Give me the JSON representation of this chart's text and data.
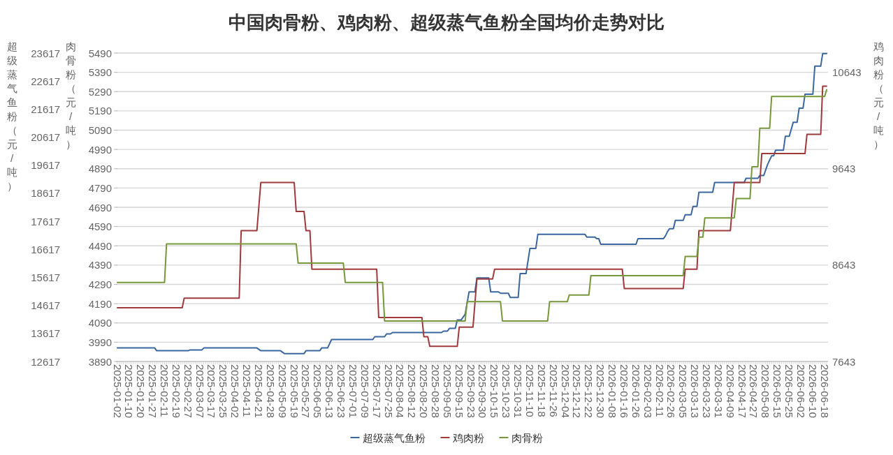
{
  "chart_data": {
    "type": "line",
    "title": "中国肉骨粉、鸡肉粉、超级蒸气鱼粉全国均价走势对比",
    "ylabel": "肉骨粉（元/吨）",
    "y2label": "鸡肉粉（元/吨）",
    "y3label": "超级蒸气鱼粉（元/吨）",
    "ylim": [
      3890,
      5490
    ],
    "yticks": [
      3890,
      3990,
      4090,
      4190,
      4290,
      4390,
      4490,
      4590,
      4690,
      4790,
      4890,
      4990,
      5090,
      5190,
      5290,
      5390,
      5490
    ],
    "y2lim": [
      7643,
      10843
    ],
    "y2ticks": [
      7643,
      8643,
      9643,
      10643
    ],
    "y3lim": [
      12617,
      23617
    ],
    "y3ticks": [
      12617,
      13617,
      14617,
      15617,
      16617,
      17617,
      18617,
      19617,
      20617,
      21617,
      22617,
      23617
    ],
    "grid": "y",
    "legend": "bottom",
    "categories": [
      "2025-01-02",
      null,
      null,
      null,
      null,
      null,
      "2025-01-10",
      null,
      null,
      null,
      null,
      null,
      "2025-01-20",
      null,
      null,
      null,
      null,
      null,
      "2025-01-27",
      null,
      null,
      null,
      null,
      null,
      "2025-02-11",
      null,
      null,
      null,
      null,
      null,
      "2025-02-19",
      null,
      null,
      null,
      null,
      null,
      "2025-02-27",
      null,
      null,
      null,
      null,
      null,
      "2025-03-07",
      null,
      null,
      null,
      null,
      null,
      "2025-03-17",
      null,
      null,
      null,
      null,
      null,
      "2025-03-25",
      null,
      null,
      null,
      null,
      null,
      "2025-04-02",
      null,
      null,
      null,
      null,
      null,
      "2025-04-11",
      null,
      null,
      null,
      null,
      null,
      "2025-04-21",
      null,
      null,
      null,
      null,
      null,
      "2025-04-28",
      null,
      null,
      null,
      null,
      null,
      "2025-05-09",
      null,
      null,
      null,
      null,
      null,
      "2025-05-19",
      null,
      null,
      null,
      null,
      null,
      "2025-05-27",
      null,
      null,
      null,
      null,
      null,
      "2025-06-05",
      null,
      null,
      null,
      null,
      null,
      "2025-06-13",
      null,
      null,
      null,
      null,
      null,
      "2025-06-23",
      null,
      null,
      null,
      null,
      null,
      "2025-07-01",
      null,
      null,
      null,
      null,
      null,
      "2025-07-09",
      null,
      null,
      null,
      null,
      null,
      "2025-07-17",
      null,
      null,
      null,
      null,
      null,
      "2025-07-25",
      null,
      null,
      null,
      null,
      null,
      "2025-08-04",
      null,
      null,
      null,
      null,
      null,
      "2025-08-12",
      null,
      null,
      null,
      null,
      null,
      "2025-08-20",
      null,
      null,
      null,
      null,
      null,
      "2025-08-28",
      null,
      null,
      null,
      null,
      null,
      "2025-09-05",
      null,
      null,
      null,
      null,
      null,
      "2025-09-15",
      null,
      null,
      null,
      null,
      null,
      "2025-09-23",
      null,
      null,
      null,
      null,
      null,
      "2025-09-30",
      null,
      null,
      null,
      null,
      null,
      "2025-10-15",
      null,
      null,
      null,
      null,
      null,
      "2025-10-23",
      null,
      null,
      null,
      null,
      null,
      "2025-10-31",
      null,
      null,
      null,
      null,
      null,
      "2025-11-10",
      null,
      null,
      null,
      null,
      null,
      "2025-11-18",
      null,
      null,
      null,
      null,
      null,
      "2025-11-26",
      null,
      null,
      null,
      null,
      null,
      "2025-12-04",
      null,
      null,
      null,
      null,
      null,
      "2025-12-12",
      null,
      null,
      null,
      null,
      null,
      "2025-12-22",
      null,
      null,
      null,
      null,
      null,
      "2025-12-30",
      null,
      null,
      null,
      null,
      null,
      "2026-01-08",
      null,
      null,
      null,
      null,
      null,
      "2026-01-16",
      null,
      null,
      null,
      null,
      null,
      "2026-01-26",
      null,
      null,
      null,
      null,
      null,
      "2026-02-03",
      null,
      null,
      null,
      null,
      null,
      "2026-02-11",
      null,
      null,
      null,
      null,
      null,
      "2026-02-26",
      null,
      null,
      null,
      null,
      null,
      "2026-03-05",
      null,
      null,
      null,
      null,
      null,
      "2026-03-13",
      null,
      null,
      null,
      null,
      null,
      "2026-03-23",
      null,
      null,
      null,
      null,
      null,
      "2026-03-31",
      null,
      null,
      null,
      null,
      null,
      "2026-04-09",
      null,
      null,
      null,
      null,
      null,
      "2026-04-17",
      null,
      null,
      null,
      null,
      null,
      "2026-04-27",
      null,
      null,
      null,
      null,
      null,
      "2026-05-08",
      null,
      null,
      null,
      null,
      null,
      "2026-05-15",
      null,
      null,
      null,
      null,
      null,
      "2026-05-25",
      null,
      null,
      null,
      null,
      null,
      "2026-06-02",
      null,
      null,
      null,
      null,
      null,
      "2026-06-10",
      null,
      null,
      null,
      null,
      null,
      "2026-06-18",
      null
    ],
    "series": [
      {
        "name": "超级蒸气鱼粉",
        "color": "#3a67a0",
        "axis": "y3",
        "values": [
          13100,
          13100,
          13100,
          13100,
          13100,
          13100,
          13100,
          13100,
          13100,
          13100,
          13100,
          13100,
          13100,
          13100,
          13100,
          13100,
          13100,
          13100,
          13100,
          13100,
          13000,
          13000,
          13000,
          13000,
          13000,
          13000,
          13000,
          13000,
          13000,
          13000,
          13000,
          13000,
          13000,
          13000,
          13000,
          13000,
          13000,
          13030,
          13030,
          13030,
          13030,
          13030,
          13030,
          13030,
          13100,
          13100,
          13100,
          13100,
          13100,
          13100,
          13100,
          13100,
          13100,
          13100,
          13100,
          13100,
          13100,
          13100,
          13100,
          13100,
          13100,
          13100,
          13100,
          13100,
          13100,
          13100,
          13100,
          13100,
          13100,
          13100,
          13100,
          13100,
          13050,
          13000,
          13000,
          13000,
          13000,
          13000,
          13000,
          13000,
          13000,
          13000,
          13000,
          13000,
          12950,
          12900,
          12900,
          12900,
          12900,
          12900,
          12900,
          12900,
          12900,
          12900,
          12900,
          12900,
          13000,
          13000,
          13000,
          13000,
          13000,
          13000,
          13000,
          13000,
          13100,
          13100,
          13100,
          13100,
          13250,
          13400,
          13400,
          13400,
          13400,
          13400,
          13400,
          13400,
          13400,
          13400,
          13400,
          13400,
          13400,
          13400,
          13400,
          13400,
          13400,
          13400,
          13400,
          13400,
          13400,
          13400,
          13400,
          13500,
          13500,
          13500,
          13500,
          13500,
          13500,
          13600,
          13600,
          13600,
          13650,
          13650,
          13650,
          13650,
          13650,
          13650,
          13650,
          13650,
          13650,
          13650,
          13650,
          13650,
          13650,
          13650,
          13650,
          13650,
          13650,
          13650,
          13650,
          13650,
          13650,
          13650,
          13650,
          13650,
          13650,
          13650,
          13700,
          13700,
          13700,
          13800,
          13800,
          13800,
          13800,
          14100,
          14100,
          14100,
          14200,
          14300,
          14700,
          15100,
          15100,
          15100,
          15100,
          15600,
          15600,
          15600,
          15600,
          15600,
          15600,
          15600,
          15100,
          15100,
          15100,
          15100,
          15100,
          15050,
          15050,
          15050,
          15050,
          15050,
          14900,
          14900,
          14900,
          14900,
          14900,
          15750,
          15750,
          15750,
          15750,
          16200,
          16650,
          16650,
          16650,
          16650,
          17150,
          17150,
          17150,
          17150,
          17150,
          17150,
          17150,
          17150,
          17150,
          17150,
          17150,
          17150,
          17150,
          17150,
          17150,
          17150,
          17150,
          17150,
          17150,
          17150,
          17150,
          17150,
          17150,
          17150,
          17150,
          17050,
          17050,
          17050,
          17050,
          17050,
          17000,
          17000,
          16800,
          16800,
          16800,
          16800,
          16800,
          16800,
          16800,
          16800,
          16800,
          16800,
          16800,
          16800,
          16800,
          16800,
          16800,
          16800,
          16800,
          16800,
          16800,
          17000,
          17000,
          17000,
          17000,
          17000,
          17000,
          17000,
          17000,
          17000,
          17000,
          17000,
          17000,
          17000,
          17000,
          17100,
          17250,
          17350,
          17350,
          17350,
          17650,
          17650,
          17650,
          17650,
          17650,
          17850,
          17850,
          17850,
          17850,
          18150,
          18150,
          18150,
          18650,
          18650,
          18650,
          18650,
          18650,
          18650,
          18650,
          18650,
          19000,
          19000,
          19000,
          19000,
          19000,
          19000,
          19000,
          19000,
          19000,
          19000,
          19000,
          19000,
          19000,
          19000,
          19000,
          19000,
          19150,
          19150,
          19150,
          19150,
          19150,
          19150,
          19150,
          19250,
          19250,
          19250,
          19450,
          19650,
          19800,
          19950,
          19950,
          20150,
          20150,
          20150,
          20150,
          20150,
          20650,
          20650,
          20650,
          20900,
          21150,
          21150,
          21150,
          21650,
          21650,
          21650,
          22150,
          22150,
          22150,
          22150,
          22150,
          23150,
          23150,
          23150,
          23150,
          23600,
          23600,
          23600
        ]
      },
      {
        "name": "鸡肉粉",
        "color": "#a0393b",
        "axis": "y2",
        "values": [
          8200,
          8200,
          8200,
          8200,
          8200,
          8200,
          8200,
          8200,
          8200,
          8200,
          8200,
          8200,
          8200,
          8200,
          8200,
          8200,
          8200,
          8200,
          8200,
          8200,
          8200,
          8200,
          8200,
          8200,
          8200,
          8200,
          8200,
          8200,
          8200,
          8200,
          8200,
          8200,
          8200,
          8200,
          8300,
          8300,
          8300,
          8300,
          8300,
          8300,
          8300,
          8300,
          8300,
          8300,
          8300,
          8300,
          8300,
          8300,
          8300,
          8300,
          8300,
          8300,
          8300,
          8300,
          8300,
          8300,
          8300,
          8300,
          8300,
          8300,
          8300,
          8300,
          8300,
          9000,
          9000,
          9000,
          9000,
          9000,
          9000,
          9000,
          9000,
          9000,
          9250,
          9500,
          9500,
          9500,
          9500,
          9500,
          9500,
          9500,
          9500,
          9500,
          9500,
          9500,
          9500,
          9500,
          9500,
          9500,
          9500,
          9500,
          9500,
          9200,
          9200,
          9200,
          9200,
          9200,
          9000,
          9000,
          9000,
          8600,
          8600,
          8600,
          8600,
          8600,
          8600,
          8600,
          8600,
          8600,
          8600,
          8600,
          8600,
          8600,
          8600,
          8600,
          8600,
          8600,
          8600,
          8600,
          8600,
          8600,
          8600,
          8600,
          8600,
          8600,
          8600,
          8600,
          8600,
          8600,
          8600,
          8600,
          8600,
          8600,
          8600,
          8100,
          8100,
          8100,
          8100,
          8100,
          8100,
          8100,
          8100,
          8100,
          8100,
          8100,
          8100,
          8100,
          8100,
          8100,
          8100,
          8100,
          8100,
          8100,
          8100,
          8100,
          8100,
          8100,
          7900,
          7900,
          7900,
          7800,
          7800,
          7800,
          7800,
          7800,
          7800,
          7800,
          7800,
          7800,
          7800,
          7800,
          7800,
          7800,
          7800,
          7800,
          8000,
          8000,
          8000,
          8000,
          8000,
          8000,
          8000,
          8000,
          8250,
          8500,
          8500,
          8500,
          8500,
          8500,
          8500,
          8500,
          8500,
          8500,
          8600,
          8600,
          8600,
          8600,
          8600,
          8600,
          8600,
          8600,
          8600,
          8600,
          8600,
          8600,
          8600,
          8600,
          8600,
          8600,
          8600,
          8600,
          8600,
          8600,
          8600,
          8600,
          8600,
          8600,
          8600,
          8600,
          8600,
          8600,
          8600,
          8600,
          8600,
          8600,
          8600,
          8600,
          8600,
          8600,
          8600,
          8600,
          8600,
          8600,
          8600,
          8600,
          8600,
          8600,
          8600,
          8600,
          8600,
          8600,
          8600,
          8600,
          8600,
          8600,
          8600,
          8600,
          8600,
          8600,
          8600,
          8600,
          8600,
          8600,
          8600,
          8600,
          8600,
          8600,
          8600,
          8600,
          8400,
          8400,
          8400,
          8400,
          8400,
          8400,
          8400,
          8400,
          8400,
          8400,
          8400,
          8400,
          8400,
          8400,
          8400,
          8400,
          8400,
          8400,
          8400,
          8400,
          8400,
          8400,
          8400,
          8400,
          8400,
          8400,
          8400,
          8400,
          8400,
          8400,
          8400,
          8600,
          8600,
          8600,
          8600,
          8600,
          8600,
          8600,
          9000,
          9000,
          9000,
          9000,
          9000,
          9000,
          9000,
          9000,
          9000,
          9000,
          9000,
          9000,
          9000,
          9000,
          9000,
          9000,
          9000,
          9250,
          9500,
          9500,
          9500,
          9500,
          9500,
          9500,
          9500,
          9500,
          9500,
          9500,
          9500,
          9500,
          9500,
          9500,
          9800,
          9800,
          9800,
          9800,
          9800,
          9800,
          9800,
          9800,
          9800,
          9800,
          9800,
          9800,
          9800,
          9800,
          9800,
          9800,
          9800,
          9800,
          9800,
          9800,
          9800,
          9800,
          9800,
          10000,
          10000,
          10000,
          10000,
          10000,
          10000,
          10000,
          10000,
          10500,
          10500,
          10500
        ]
      },
      {
        "name": "肉骨粉",
        "color": "#76983a",
        "values": [
          4300,
          4300,
          4300,
          4300,
          4300,
          4300,
          4300,
          4300,
          4300,
          4300,
          4300,
          4300,
          4300,
          4300,
          4300,
          4300,
          4300,
          4300,
          4300,
          4300,
          4300,
          4300,
          4300,
          4300,
          4300,
          4500,
          4500,
          4500,
          4500,
          4500,
          4500,
          4500,
          4500,
          4500,
          4500,
          4500,
          4500,
          4500,
          4500,
          4500,
          4500,
          4500,
          4500,
          4500,
          4500,
          4500,
          4500,
          4500,
          4500,
          4500,
          4500,
          4500,
          4500,
          4500,
          4500,
          4500,
          4500,
          4500,
          4500,
          4500,
          4500,
          4500,
          4500,
          4500,
          4500,
          4500,
          4500,
          4500,
          4500,
          4500,
          4500,
          4500,
          4500,
          4500,
          4500,
          4500,
          4500,
          4500,
          4500,
          4500,
          4500,
          4500,
          4500,
          4500,
          4500,
          4500,
          4500,
          4500,
          4500,
          4500,
          4500,
          4500,
          4400,
          4400,
          4400,
          4400,
          4400,
          4400,
          4400,
          4400,
          4400,
          4400,
          4400,
          4400,
          4400,
          4400,
          4400,
          4400,
          4400,
          4400,
          4400,
          4400,
          4400,
          4400,
          4400,
          4400,
          4300,
          4300,
          4300,
          4300,
          4300,
          4300,
          4300,
          4300,
          4300,
          4300,
          4300,
          4300,
          4300,
          4300,
          4300,
          4300,
          4300,
          4300,
          4300,
          4300,
          4100,
          4100,
          4100,
          4100,
          4100,
          4100,
          4100,
          4100,
          4100,
          4100,
          4100,
          4100,
          4100,
          4100,
          4100,
          4100,
          4100,
          4100,
          4100,
          4100,
          4100,
          4100,
          4100,
          4100,
          4100,
          4100,
          4100,
          4100,
          4100,
          4100,
          4100,
          4100,
          4100,
          4100,
          4100,
          4100,
          4100,
          4100,
          4100,
          4100,
          4100,
          4100,
          4200,
          4200,
          4200,
          4200,
          4200,
          4200,
          4200,
          4200,
          4200,
          4200,
          4200,
          4200,
          4200,
          4200,
          4200,
          4200,
          4200,
          4200,
          4100,
          4100,
          4100,
          4100,
          4100,
          4100,
          4100,
          4100,
          4100,
          4100,
          4100,
          4100,
          4100,
          4100,
          4100,
          4100,
          4100,
          4100,
          4100,
          4100,
          4100,
          4100,
          4100,
          4100,
          4200,
          4200,
          4200,
          4200,
          4200,
          4200,
          4200,
          4200,
          4200,
          4200,
          4235,
          4235,
          4235,
          4235,
          4235,
          4235,
          4235,
          4235,
          4235,
          4235,
          4235,
          4335,
          4335,
          4335,
          4335,
          4335,
          4335,
          4335,
          4335,
          4335,
          4335,
          4335,
          4335,
          4335,
          4335,
          4335,
          4335,
          4335,
          4335,
          4335,
          4335,
          4335,
          4335,
          4335,
          4335,
          4335,
          4335,
          4335,
          4335,
          4335,
          4335,
          4335,
          4335,
          4335,
          4335,
          4335,
          4335,
          4335,
          4335,
          4335,
          4335,
          4335,
          4335,
          4335,
          4335,
          4335,
          4335,
          4335,
          4335,
          4435,
          4435,
          4435,
          4435,
          4435,
          4435,
          4435,
          4535,
          4535,
          4535,
          4635,
          4635,
          4635,
          4635,
          4635,
          4635,
          4635,
          4635,
          4635,
          4635,
          4635,
          4635,
          4635,
          4635,
          4635,
          4635,
          4735,
          4735,
          4735,
          4735,
          4735,
          4735,
          4735,
          4735,
          4900,
          4900,
          4900,
          4900,
          5100,
          5100,
          5100,
          5100,
          5100,
          5100,
          5265,
          5265,
          5265,
          5265,
          5265,
          5265,
          5265,
          5265,
          5265,
          5265,
          5265,
          5265,
          5265,
          5265,
          5265,
          5265,
          5265,
          5265,
          5265,
          5265,
          5265,
          5265,
          5265,
          5265,
          5265,
          5265,
          5265,
          5265,
          5300
        ]
      }
    ]
  }
}
